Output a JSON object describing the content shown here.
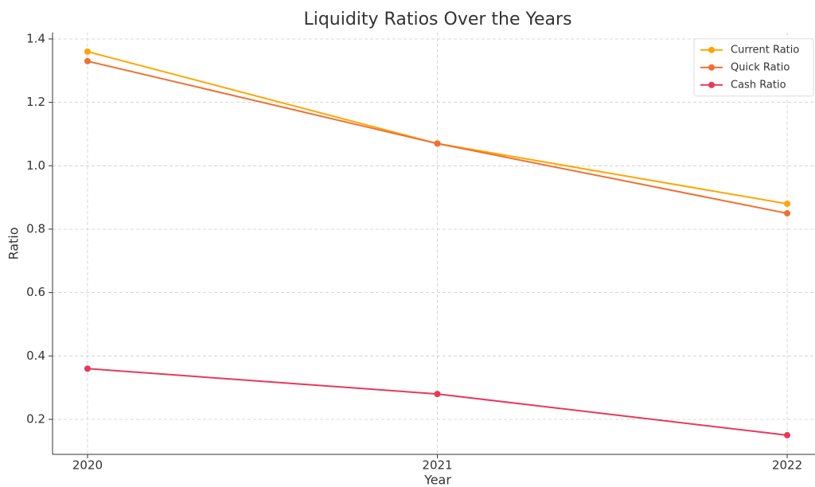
{
  "chart_data": {
    "type": "line",
    "title": "Liquidity Ratios Over the Years",
    "x_label": "Year",
    "y_label": "Ratio",
    "x": [
      2020,
      2021,
      2022
    ],
    "series": [
      {
        "name": "Current Ratio",
        "color": "#ffa500",
        "values": [
          1.36,
          1.07,
          0.88
        ]
      },
      {
        "name": "Quick Ratio",
        "color": "#f07030",
        "values": [
          1.33,
          1.07,
          0.85
        ]
      },
      {
        "name": "Cash Ratio",
        "color": "#e8385a",
        "values": [
          0.36,
          0.28,
          0.15
        ]
      }
    ],
    "xlim": [
      2019.9,
      2022.1
    ],
    "xticks": [
      2020,
      2021,
      2022
    ],
    "ylim": [
      0.0895,
      1.4205
    ],
    "yticks": [
      {
        "value": 0.2,
        "label": "0.2"
      },
      {
        "value": 0.4,
        "label": "0.4"
      },
      {
        "value": 0.6,
        "label": "0.6"
      },
      {
        "value": 0.8,
        "label": "0.8"
      },
      {
        "value": 1.0,
        "label": "1.0"
      },
      {
        "value": 1.2,
        "label": "1.2"
      },
      {
        "value": 1.4,
        "label": "1.4"
      }
    ],
    "grid": true,
    "legend": "upper right"
  }
}
